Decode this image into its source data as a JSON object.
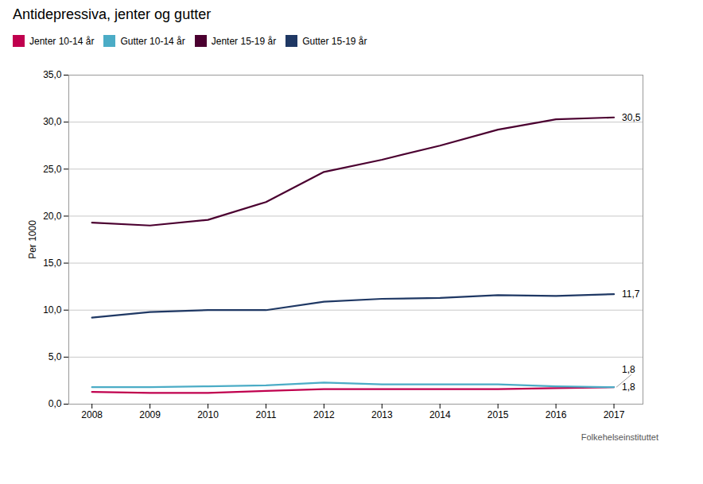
{
  "chart_data": {
    "type": "line",
    "title": "Antidepressiva, jenter og gutter",
    "y_label": "Per 1000",
    "source": "Folkehelseinstituttet",
    "x": [
      2008,
      2009,
      2010,
      2011,
      2012,
      2013,
      2014,
      2015,
      2016,
      2017
    ],
    "series": [
      {
        "name": "Jenter 10-14 år",
        "color": "#c0004e",
        "values": [
          1.3,
          1.2,
          1.2,
          1.4,
          1.6,
          1.6,
          1.6,
          1.6,
          1.7,
          1.8
        ],
        "value_labels": [
          null,
          null,
          null,
          null,
          null,
          null,
          null,
          null,
          null,
          "1,8"
        ]
      },
      {
        "name": "Gutter 10-14 år",
        "color": "#4bacc6",
        "values": [
          1.8,
          1.8,
          1.9,
          2.0,
          2.3,
          2.1,
          2.1,
          2.1,
          1.9,
          1.8
        ],
        "value_labels": [
          null,
          null,
          null,
          null,
          null,
          null,
          null,
          null,
          null,
          "1,8"
        ]
      },
      {
        "name": "Jenter 15-19 år",
        "color": "#4b0030",
        "values": [
          19.3,
          19.0,
          19.6,
          21.5,
          24.7,
          26.0,
          27.5,
          29.2,
          30.3,
          30.5
        ],
        "value_labels": [
          null,
          null,
          null,
          null,
          null,
          null,
          null,
          null,
          null,
          "30,5"
        ]
      },
      {
        "name": "Gutter 15-19 år",
        "color": "#1f3864",
        "values": [
          9.2,
          9.8,
          10.0,
          10.0,
          10.9,
          11.2,
          11.3,
          11.6,
          11.5,
          11.7
        ],
        "value_labels": [
          null,
          null,
          null,
          null,
          null,
          null,
          null,
          null,
          null,
          "11,7"
        ]
      }
    ],
    "xlim": [
      2007.6,
      2017.5
    ],
    "xticks": [
      2008,
      2009,
      2010,
      2011,
      2012,
      2013,
      2014,
      2015,
      2016,
      2017
    ],
    "ylim": [
      0,
      35
    ],
    "yticks": [
      {
        "value": 0,
        "label": "0,0"
      },
      {
        "value": 5,
        "label": "5,0"
      },
      {
        "value": 10,
        "label": "10,0"
      },
      {
        "value": 15,
        "label": "15,0"
      },
      {
        "value": 20,
        "label": "20,0"
      },
      {
        "value": 25,
        "label": "25,0"
      },
      {
        "value": 30,
        "label": "30,0"
      },
      {
        "value": 35,
        "label": "35,0"
      }
    ],
    "grid": true,
    "legend": "top left"
  }
}
